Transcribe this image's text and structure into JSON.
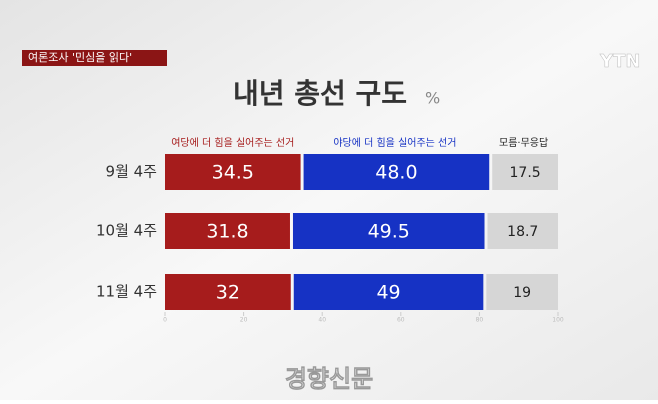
{
  "banner": "여론조사 '민심을 읽다'",
  "logo": "YTN",
  "watermark": "경향신문",
  "chart_data": {
    "type": "stacked-bar",
    "orientation": "horizontal",
    "title": "내년 총선 구도",
    "unit": "%",
    "categories": [
      "9월 4주",
      "10월 4주",
      "11월 4주"
    ],
    "series": [
      {
        "name": "여당에 더 힘을 실어주는 선거",
        "color": "#a61c1c",
        "values": [
          34.5,
          31.8,
          32
        ]
      },
      {
        "name": "야당에 더 힘을 실어주는 선거",
        "color": "#1632c4",
        "values": [
          48.0,
          49.5,
          49
        ],
        "value_labels": [
          "48.0",
          "49.5",
          "49"
        ]
      },
      {
        "name": "모름·무응답",
        "color": "#d6d6d6",
        "values": [
          17.5,
          18.7,
          19
        ]
      }
    ],
    "xlim": [
      0,
      100
    ],
    "xticks": [
      0,
      20,
      40,
      60,
      80,
      100
    ]
  }
}
